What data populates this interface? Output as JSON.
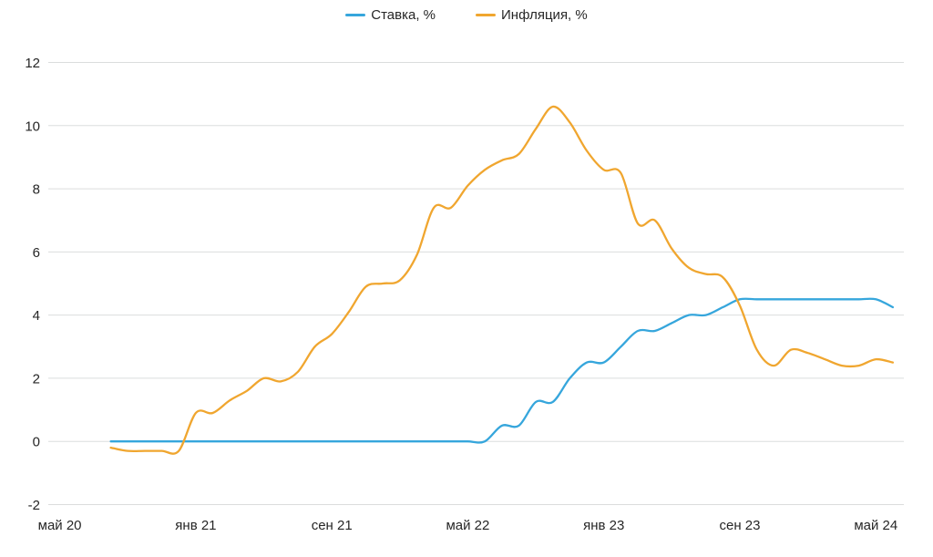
{
  "chart_data": {
    "type": "line",
    "smooth": true,
    "legend_position": "top-center",
    "grid": "horizontal",
    "background": "#FFFFFF",
    "ylim": [
      -2,
      12
    ],
    "y_ticks": [
      -2,
      0,
      2,
      4,
      6,
      8,
      10,
      12
    ],
    "x_ticks": [
      {
        "label": "май 20",
        "month": "2020-05"
      },
      {
        "label": "янв 21",
        "month": "2021-01"
      },
      {
        "label": "сен 21",
        "month": "2021-09"
      },
      {
        "label": "май 22",
        "month": "2022-05"
      },
      {
        "label": "янв 23",
        "month": "2023-01"
      },
      {
        "label": "сен 23",
        "month": "2023-09"
      },
      {
        "label": "май 24",
        "month": "2024-05"
      }
    ],
    "x": [
      "2020-08",
      "2020-09",
      "2020-10",
      "2020-11",
      "2020-12",
      "2021-01",
      "2021-02",
      "2021-03",
      "2021-04",
      "2021-05",
      "2021-06",
      "2021-07",
      "2021-08",
      "2021-09",
      "2021-10",
      "2021-11",
      "2021-12",
      "2022-01",
      "2022-02",
      "2022-03",
      "2022-04",
      "2022-05",
      "2022-06",
      "2022-07",
      "2022-08",
      "2022-09",
      "2022-10",
      "2022-11",
      "2022-12",
      "2023-01",
      "2023-02",
      "2023-03",
      "2023-04",
      "2023-05",
      "2023-06",
      "2023-07",
      "2023-08",
      "2023-09",
      "2023-10",
      "2023-11",
      "2023-12",
      "2024-01",
      "2024-02",
      "2024-03",
      "2024-04",
      "2024-05",
      "2024-06"
    ],
    "series": [
      {
        "name": "Ставка, %",
        "color": "#36A6DC",
        "values": [
          0,
          0,
          0,
          0,
          0,
          0,
          0,
          0,
          0,
          0,
          0,
          0,
          0,
          0,
          0,
          0,
          0,
          0,
          0,
          0,
          0,
          0,
          0,
          0.5,
          0.5,
          1.25,
          1.25,
          2,
          2.5,
          2.5,
          3,
          3.5,
          3.5,
          3.75,
          4,
          4,
          4.25,
          4.5,
          4.5,
          4.5,
          4.5,
          4.5,
          4.5,
          4.5,
          4.5,
          4.5,
          4.25
        ]
      },
      {
        "name": "Инфляция, %",
        "color": "#F0A62F",
        "values": [
          -0.2,
          -0.3,
          -0.3,
          -0.3,
          -0.3,
          0.9,
          0.9,
          1.3,
          1.6,
          2.0,
          1.9,
          2.2,
          3.0,
          3.4,
          4.1,
          4.9,
          5.0,
          5.1,
          5.9,
          7.4,
          7.4,
          8.1,
          8.6,
          8.9,
          9.1,
          9.9,
          10.6,
          10.1,
          9.2,
          8.6,
          8.5,
          6.9,
          7.0,
          6.1,
          5.5,
          5.3,
          5.2,
          4.3,
          2.9,
          2.4,
          2.9,
          2.8,
          2.6,
          2.4,
          2.4,
          2.6,
          2.5
        ]
      }
    ]
  }
}
